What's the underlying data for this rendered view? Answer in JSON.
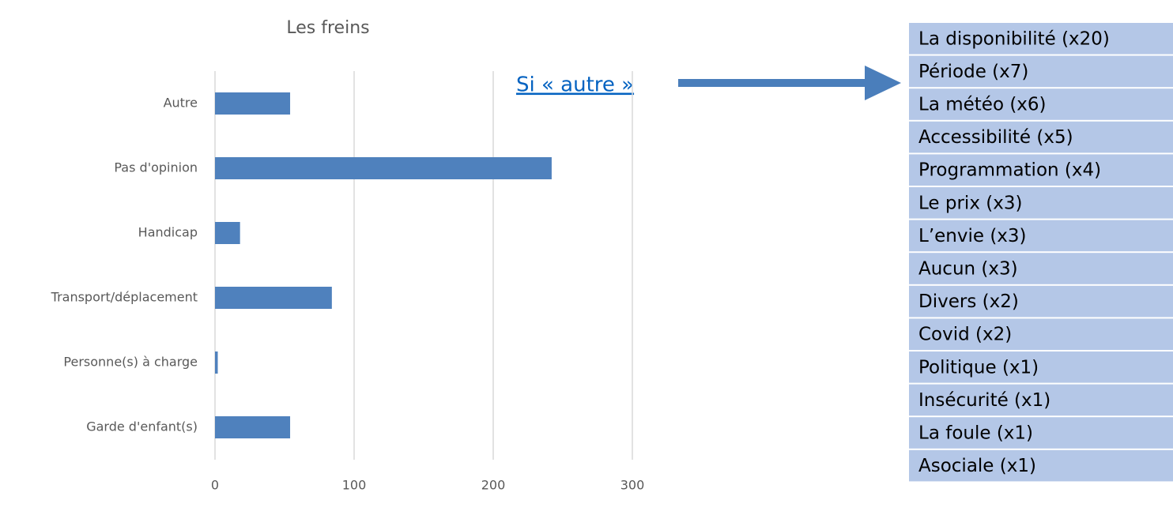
{
  "chart_data": {
    "type": "bar",
    "orientation": "horizontal",
    "title": "Les freins",
    "categories": [
      "Autre",
      "Pas d'opinion",
      "Handicap",
      "Transport/déplacement",
      "Personne(s) à charge",
      "Garde d'enfant(s)"
    ],
    "values": [
      54,
      242,
      18,
      84,
      2,
      54
    ],
    "color": "#4f81bd",
    "xlim": [
      0,
      300
    ],
    "xticks": [
      0,
      100,
      200,
      300
    ],
    "grid": true
  },
  "annotation": "Si « autre »",
  "list": [
    "La disponibilité (x20)",
    "Période (x7)",
    "La météo (x6)",
    "Accessibilité (x5)",
    "Programmation (x4)",
    "Le prix (x3)",
    "L’envie (x3)",
    "Aucun (x3)",
    "Divers (x2)",
    "Covid (x2)",
    "Politique (x1)",
    "Insécurité (x1)",
    "La foule (x1)",
    "Asociale (x1)"
  ]
}
